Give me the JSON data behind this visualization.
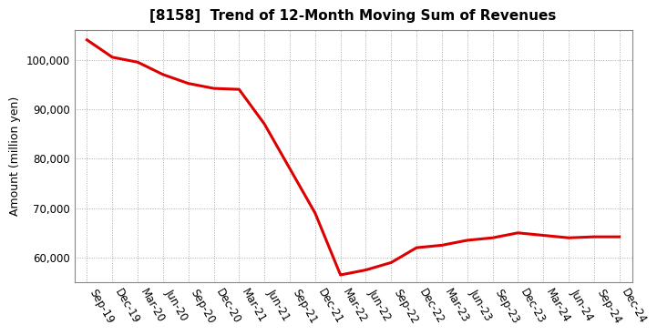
{
  "title": "[8158]  Trend of 12-Month Moving Sum of Revenues",
  "ylabel": "Amount (million yen)",
  "line_color": "#dd0000",
  "background_color": "#ffffff",
  "grid_color": "#aaaaaa",
  "x_labels": [
    "Sep-19",
    "Dec-19",
    "Mar-20",
    "Jun-20",
    "Sep-20",
    "Dec-20",
    "Mar-21",
    "Jun-21",
    "Sep-21",
    "Dec-21",
    "Mar-22",
    "Jun-22",
    "Sep-22",
    "Dec-22",
    "Mar-23",
    "Jun-23",
    "Sep-23",
    "Dec-23",
    "Mar-24",
    "Jun-24",
    "Sep-24",
    "Dec-24"
  ],
  "y_values": [
    104000,
    100500,
    99500,
    97000,
    95200,
    94200,
    94000,
    87000,
    78000,
    69000,
    56500,
    57500,
    59000,
    62000,
    62500,
    63500,
    64000,
    65000,
    64500,
    64000,
    64200,
    64200
  ],
  "ylim": [
    55000,
    106000
  ],
  "yticks": [
    60000,
    70000,
    80000,
    90000,
    100000
  ],
  "linewidth": 2.2,
  "title_fontsize": 11,
  "ylabel_fontsize": 9,
  "tick_fontsize": 8.5
}
